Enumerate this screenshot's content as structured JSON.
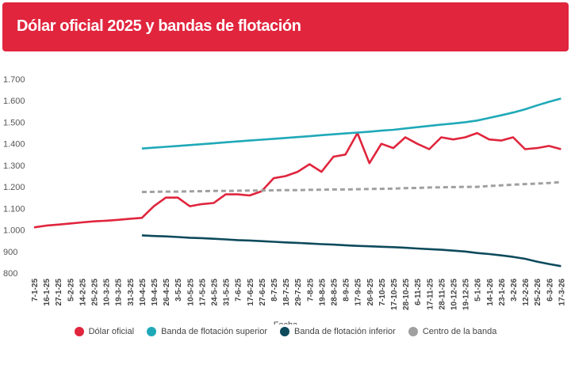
{
  "header": {
    "title": "Dólar oficial 2025 y bandas de flotación"
  },
  "chart_data": {
    "type": "line",
    "title": "Dólar oficial 2025 y bandas de flotación",
    "xlabel": "Fecha",
    "ylabel": "",
    "ylim": [
      800,
      1700
    ],
    "yticks": [
      800,
      900,
      1000,
      1100,
      1200,
      1300,
      1400,
      1500,
      1600,
      1700
    ],
    "ytick_labels": [
      "800",
      "900",
      "1.000",
      "1.100",
      "1.200",
      "1.300",
      "1.400",
      "1.500",
      "1.600",
      "1.700"
    ],
    "grid": false,
    "legend_placement": "bottom",
    "categories": [
      "7-1-25",
      "16-1-25",
      "27-1-25",
      "5-2-25",
      "14-2-25",
      "25-2-25",
      "10-3-25",
      "19-3-25",
      "31-3-25",
      "10-4-25",
      "19-4-25",
      "26-4-25",
      "3-5-25",
      "10-5-25",
      "17-5-25",
      "24-5-25",
      "31-5-25",
      "7-6-25",
      "17-6-25",
      "27-6-25",
      "8-7-25",
      "18-7-25",
      "29-7-25",
      "7-8-25",
      "19-8-25",
      "28-8-25",
      "8-9-25",
      "17-9-25",
      "26-9-25",
      "7-10-25",
      "17-10-25",
      "28-10-25",
      "6-11-25",
      "17-11-25",
      "28-11-25",
      "10-12-25",
      "19-12-25",
      "5-1-26",
      "14-1-26",
      "23-1-26",
      "3-2-26",
      "12-2-26",
      "25-2-26",
      "6-3-26",
      "17-3-26"
    ],
    "series": [
      {
        "name": "Dólar oficial",
        "color": "#e0253d",
        "style": "solid",
        "values": [
          1012,
          1020,
          1025,
          1030,
          1035,
          1040,
          1043,
          1047,
          1052,
          1056,
          1110,
          1150,
          1150,
          1110,
          1120,
          1125,
          1165,
          1165,
          1160,
          1180,
          1240,
          1250,
          1270,
          1305,
          1270,
          1340,
          1350,
          1450,
          1310,
          1400,
          1380,
          1430,
          1400,
          1375,
          1430,
          1420,
          1430,
          1450,
          1420,
          1415,
          1430,
          1375,
          1380,
          1390,
          1375
        ]
      },
      {
        "name": "Banda de flotación superior",
        "color": "#1fa9b8",
        "style": "solid",
        "values": [
          null,
          null,
          null,
          null,
          null,
          null,
          null,
          null,
          null,
          1378,
          1382,
          1386,
          1390,
          1394,
          1398,
          1402,
          1407,
          1411,
          1415,
          1419,
          1423,
          1427,
          1431,
          1435,
          1440,
          1444,
          1448,
          1452,
          1456,
          1461,
          1465,
          1471,
          1477,
          1483,
          1489,
          1494,
          1500,
          1508,
          1520,
          1532,
          1545,
          1560,
          1578,
          1595,
          1610
        ]
      },
      {
        "name": "Banda de flotación inferior",
        "color": "#0d4a5c",
        "style": "solid",
        "values": [
          null,
          null,
          null,
          null,
          null,
          null,
          null,
          null,
          null,
          975,
          972,
          970,
          967,
          964,
          962,
          959,
          956,
          953,
          951,
          948,
          945,
          942,
          940,
          937,
          934,
          932,
          929,
          926,
          924,
          922,
          920,
          917,
          914,
          911,
          908,
          904,
          900,
          893,
          888,
          882,
          875,
          866,
          853,
          842,
          832
        ]
      },
      {
        "name": "Centro de la banda",
        "color": "#a0a0a0",
        "style": "dashed",
        "values": [
          null,
          null,
          null,
          null,
          null,
          null,
          null,
          null,
          null,
          1176,
          1177,
          1178,
          1178,
          1179,
          1180,
          1181,
          1181,
          1182,
          1183,
          1183,
          1184,
          1185,
          1185,
          1186,
          1187,
          1188,
          1188,
          1189,
          1190,
          1191,
          1192,
          1194,
          1195,
          1197,
          1198,
          1199,
          1200,
          1200,
          1204,
          1207,
          1210,
          1213,
          1215,
          1218,
          1222
        ]
      }
    ]
  }
}
